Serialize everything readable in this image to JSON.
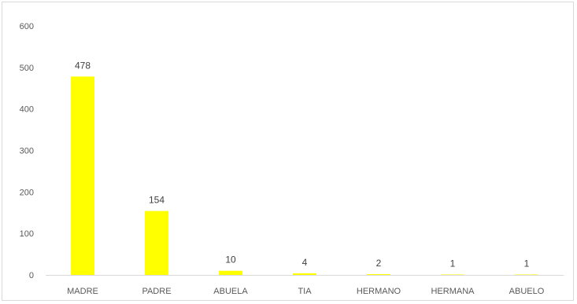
{
  "chart_data": {
    "type": "bar",
    "categories": [
      "MADRE",
      "PADRE",
      "ABUELA",
      "TIA",
      "HERMANO",
      "HERMANA",
      "ABUELO"
    ],
    "values": [
      478,
      154,
      10,
      4,
      2,
      1,
      1
    ],
    "data_labels": [
      "478",
      "154",
      "10",
      "4",
      "2",
      "1",
      "1"
    ],
    "yticks": [
      "0",
      "100",
      "200",
      "300",
      "400",
      "500",
      "600"
    ],
    "ylim": [
      0,
      600
    ],
    "grid": false,
    "legend": "none",
    "bar_color": "#ffff00",
    "axis_color": "#d9d9d9"
  }
}
